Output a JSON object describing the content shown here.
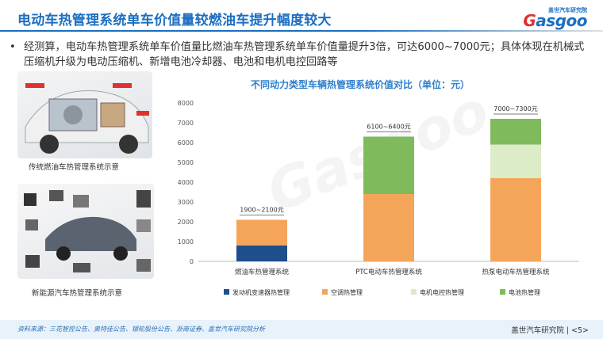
{
  "header": {
    "title": "电动车热管理系统单车价值量较燃油车提升幅度较大",
    "logo_top": "盖世汽车研究院",
    "logo_main_a": "G",
    "logo_main_b": "asgoo"
  },
  "bullet_text": "经测算，电动车热管理系统单车价值量比燃油车热管理系统单车价值量提升3倍，可达6000~7000元；具体体现在机械式压缩机升级为电动压缩机、新增电池冷却器、电池和电机电控回路等",
  "left_panel": {
    "caption_top": "传统燃油车热管理系统示意",
    "caption_bottom": "新能源汽车热管理系统示意"
  },
  "footer": {
    "source": "资料来源：三花智控公告、奥特佳公告、银轮股份公告、浙商证券、盖世汽车研究院分析",
    "brand": "盖世汽车研究院",
    "page": "<5>"
  },
  "chart_data": {
    "type": "bar",
    "stacked": true,
    "title": "不同动力类型车辆热管理系统价值对比（单位：元）",
    "categories": [
      "燃油车热管理系统",
      "PTC电动车热管理系统",
      "热泵电动车热管理系统"
    ],
    "series": [
      {
        "name": "发动机变速器热管理",
        "color": "#1f4e8c",
        "values": [
          800,
          0,
          0
        ]
      },
      {
        "name": "空调热管理",
        "color": "#f5a55a",
        "values": [
          1300,
          3400,
          4200
        ]
      },
      {
        "name": "电机电控热管理",
        "color": "#dcebc8",
        "values": [
          0,
          0,
          1700
        ]
      },
      {
        "name": "电池热管理",
        "color": "#7fba5c",
        "values": [
          0,
          2900,
          1300
        ]
      }
    ],
    "annotations": [
      "1900~2100元",
      "6100~6400元",
      "7000~7300元"
    ],
    "ylim": [
      0,
      8000
    ],
    "yticks": [
      0,
      1000,
      2000,
      3000,
      4000,
      5000,
      6000,
      7000,
      8000
    ],
    "grid": false,
    "legend": "bottom"
  }
}
